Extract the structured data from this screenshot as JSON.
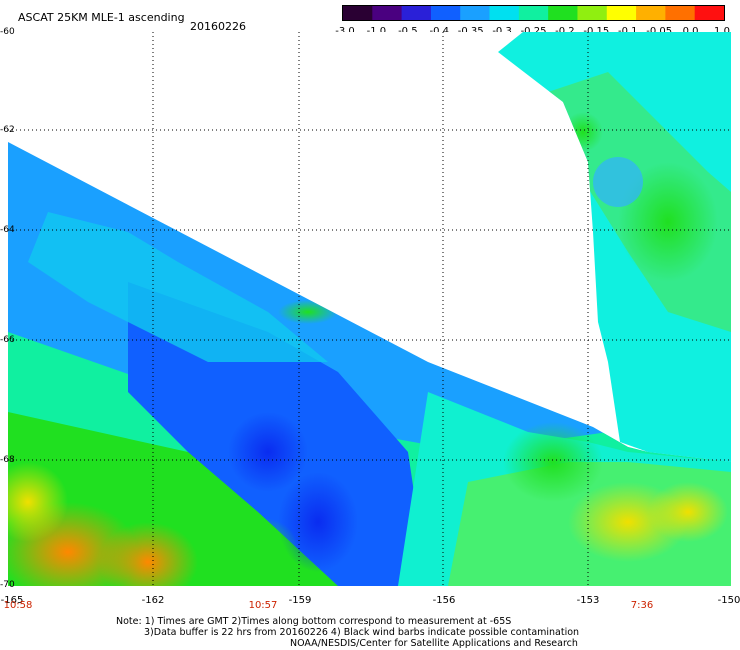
{
  "header": {
    "title": "ASCAT 25KM MLE-1 ascending",
    "date": "20160226"
  },
  "colorbar": {
    "labels": [
      "-3.0",
      "-1.0",
      "-0.5",
      "-0.4",
      "-0.35",
      "-0.3",
      "-0.25",
      "-0.2",
      "-0.15",
      "-0.1",
      "-0.05",
      "0.0",
      "1.0"
    ],
    "colors": [
      "#2a0033",
      "#4a0080",
      "#2a20d8",
      "#1060ff",
      "#1aa0ff",
      "#00e0f0",
      "#10f0a0",
      "#20e020",
      "#90ef10",
      "#ffff00",
      "#ffb000",
      "#ff7000",
      "#ff1010"
    ]
  },
  "axes": {
    "y_ticks": [
      "-60",
      "-62",
      "-64",
      "-66",
      "-68",
      "-70"
    ],
    "x_ticks": [
      "-165",
      "-162",
      "-159",
      "-156",
      "-153",
      "-150"
    ]
  },
  "times": [
    "10:58",
    "10:57",
    "7:36"
  ],
  "notes": {
    "line1": "Note: 1) Times are GMT 2)Times along bottom correspond to measurement at -65S",
    "line2": "3)Data buffer is 22 hrs from 20160226 4) Black wind barbs indicate possible contamination",
    "line3": "NOAA/NESDIS/Center for Satellite Applications and Research"
  }
}
